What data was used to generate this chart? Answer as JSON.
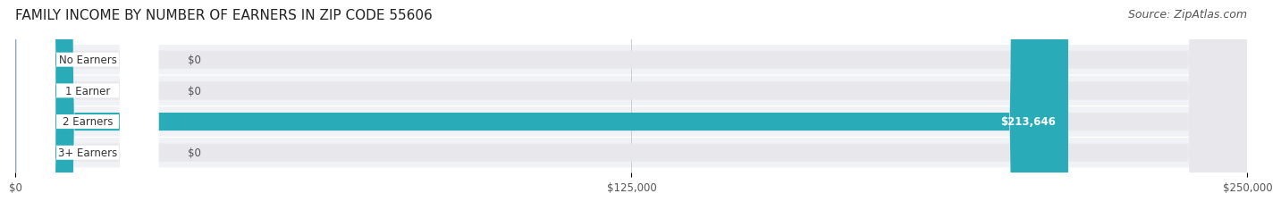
{
  "title": "FAMILY INCOME BY NUMBER OF EARNERS IN ZIP CODE 55606",
  "source": "Source: ZipAtlas.com",
  "categories": [
    "No Earners",
    "1 Earner",
    "2 Earners",
    "3+ Earners"
  ],
  "values": [
    0,
    0,
    213646,
    0
  ],
  "bar_colors": [
    "#7EB8D4",
    "#C4A0C8",
    "#2AACB8",
    "#A8A8D8"
  ],
  "label_colors": [
    "#7EB8D4",
    "#C4A0C8",
    "#2AACB8",
    "#A8A8D8"
  ],
  "bar_bg_color": "#F0F0F0",
  "bar_label_texts": [
    "$0",
    "$0",
    "$213,646",
    "$0"
  ],
  "xlim": [
    0,
    250000
  ],
  "xticks": [
    0,
    125000,
    250000
  ],
  "xtick_labels": [
    "$0",
    "$125,000",
    "$250,000"
  ],
  "title_fontsize": 11,
  "source_fontsize": 9,
  "background_color": "#FFFFFF",
  "row_bg_colors": [
    "#F8F8F8",
    "#F8F8F8",
    "#F8F8F8",
    "#F8F8F8"
  ]
}
